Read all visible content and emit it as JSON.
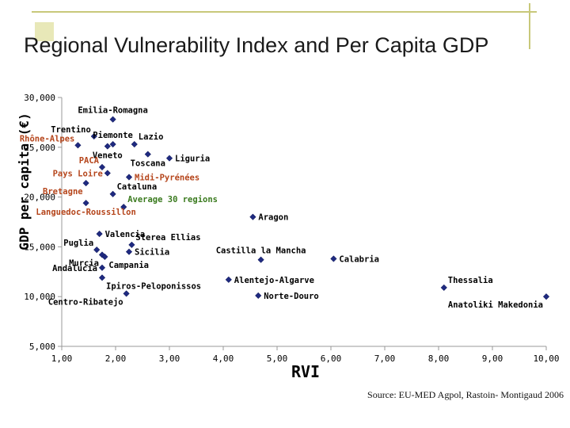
{
  "slide": {
    "title": "Regional Vulnerability Index and Per Capita GDP",
    "source": "Source: EU-MED Agpol, Rastoin- Montigaud 2006"
  },
  "chart_data": {
    "type": "scatter",
    "title": "Regional Vulnerability Index and Per Capita GDP",
    "xlabel": "RVI",
    "ylabel": "GDP per capita (€)",
    "xlim": [
      1.0,
      10.0
    ],
    "ylim": [
      5000,
      30000
    ],
    "x_ticks": [
      1,
      2,
      3,
      4,
      5,
      6,
      7,
      8,
      9,
      10
    ],
    "x_tick_labels": [
      "1,00",
      "2,00",
      "3,00",
      "4,00",
      "5,00",
      "6,00",
      "7,00",
      "8,00",
      "9,00",
      "10,00"
    ],
    "y_ticks": [
      5000,
      10000,
      15000,
      20000,
      25000,
      30000
    ],
    "y_tick_labels": [
      "5,000",
      "10,000",
      "15,000",
      "20,000",
      "25,000",
      "30,000"
    ],
    "marker_color": "#1f2a80",
    "label_colors": {
      "italy": "#000000",
      "france": "#b5451b",
      "spain": "#000000",
      "greece": "#000000",
      "average": "#3a7a1e"
    },
    "points": [
      {
        "label": "Emilia-Romagna",
        "x": 1.95,
        "y": 27800,
        "group": "italy",
        "anchor": "above"
      },
      {
        "label": "Trentino",
        "x": 1.6,
        "y": 26100,
        "group": "italy",
        "anchor": "above-left"
      },
      {
        "label": "Piemonte",
        "x": 1.95,
        "y": 25300,
        "group": "italy",
        "anchor": "above"
      },
      {
        "label": "Lazio",
        "x": 2.35,
        "y": 25300,
        "group": "italy",
        "anchor": "above-right"
      },
      {
        "label": "Rhône-Alpes",
        "x": 1.3,
        "y": 25200,
        "group": "france",
        "anchor": "above-left"
      },
      {
        "label": "Veneto",
        "x": 1.85,
        "y": 25100,
        "group": "italy",
        "anchor": "below"
      },
      {
        "label": "Liguria",
        "x": 3.0,
        "y": 23900,
        "group": "italy",
        "anchor": "right"
      },
      {
        "label": "Toscana",
        "x": 2.6,
        "y": 24300,
        "group": "italy",
        "anchor": "below"
      },
      {
        "label": "PACA",
        "x": 1.75,
        "y": 23000,
        "group": "france",
        "anchor": "above-left"
      },
      {
        "label": "Pays Loire",
        "x": 1.85,
        "y": 22400,
        "group": "france",
        "anchor": "left"
      },
      {
        "label": "Midi-Pyrénées",
        "x": 2.25,
        "y": 22000,
        "group": "france",
        "anchor": "right"
      },
      {
        "label": "Bretagne",
        "x": 1.45,
        "y": 21400,
        "group": "france",
        "anchor": "below-left"
      },
      {
        "label": "Cataluna",
        "x": 1.95,
        "y": 20300,
        "group": "spain",
        "anchor": "above-right"
      },
      {
        "label": "Languedoc-Roussillon",
        "x": 1.45,
        "y": 19400,
        "group": "france",
        "anchor": "below"
      },
      {
        "label": "Average 30 regions",
        "x": 2.15,
        "y": 19000,
        "group": "average",
        "anchor": "above-right"
      },
      {
        "label": "Aragon",
        "x": 4.55,
        "y": 18000,
        "group": "spain",
        "anchor": "right"
      },
      {
        "label": "Valencia",
        "x": 1.7,
        "y": 16300,
        "group": "spain",
        "anchor": "right"
      },
      {
        "label": "Sterea Ellias",
        "x": 2.3,
        "y": 15200,
        "group": "greece",
        "anchor": "above-right"
      },
      {
        "label": "Puglia",
        "x": 1.65,
        "y": 14700,
        "group": "italy",
        "anchor": "above-left"
      },
      {
        "label": "Sicilia",
        "x": 2.25,
        "y": 14500,
        "group": "italy",
        "anchor": "right"
      },
      {
        "label": "Castilla la Mancha",
        "x": 4.7,
        "y": 13700,
        "group": "spain",
        "anchor": "above"
      },
      {
        "label": "Calabria",
        "x": 6.05,
        "y": 13800,
        "group": "italy",
        "anchor": "right"
      },
      {
        "label": "Murcia",
        "x": 1.75,
        "y": 14200,
        "group": "spain",
        "anchor": "below-left"
      },
      {
        "label": "Campania",
        "x": 1.8,
        "y": 14000,
        "group": "italy",
        "anchor": "below-right"
      },
      {
        "label": "Andalucia",
        "x": 1.75,
        "y": 12900,
        "group": "spain",
        "anchor": "left"
      },
      {
        "label": "Alentejo-Algarve",
        "x": 4.1,
        "y": 11700,
        "group": "greece",
        "anchor": "right"
      },
      {
        "label": "Ipiros-Peloponissos",
        "x": 1.75,
        "y": 11900,
        "group": "greece",
        "anchor": "below-right"
      },
      {
        "label": "Thessalia",
        "x": 8.1,
        "y": 10900,
        "group": "greece",
        "anchor": "above-right"
      },
      {
        "label": "Centro-Ribatejo",
        "x": 2.2,
        "y": 10300,
        "group": "greece",
        "anchor": "below-left"
      },
      {
        "label": "Norte-Douro",
        "x": 4.65,
        "y": 10100,
        "group": "greece",
        "anchor": "right"
      },
      {
        "label": "Anatoliki Makedonia",
        "x": 10.0,
        "y": 10000,
        "group": "greece",
        "anchor": "below-left"
      }
    ]
  }
}
